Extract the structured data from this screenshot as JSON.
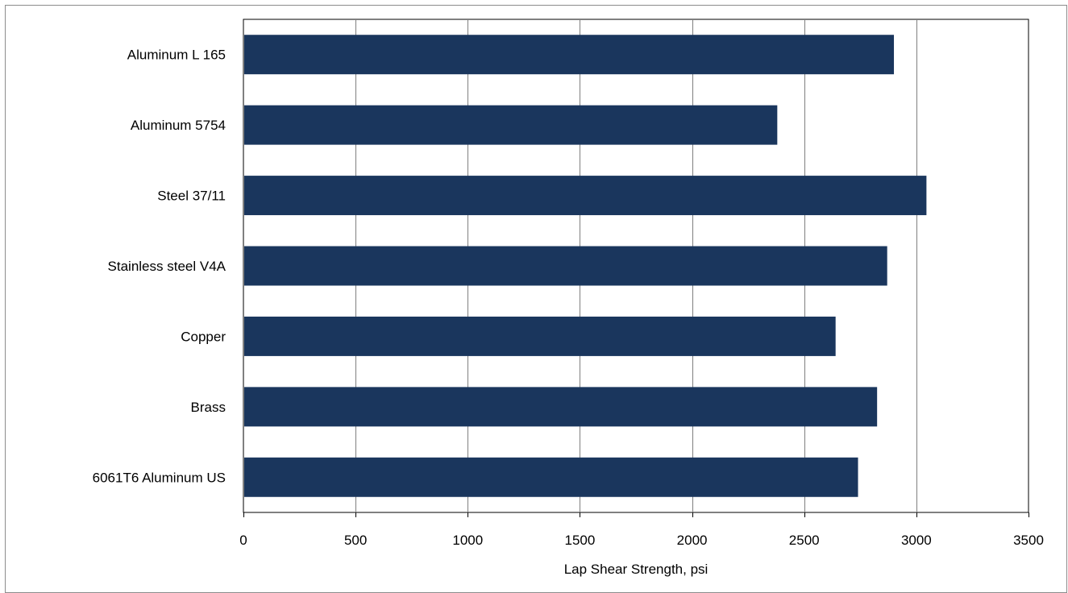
{
  "chart_data": {
    "type": "bar",
    "orientation": "horizontal",
    "categories": [
      "Aluminum L 165",
      "Aluminum 5754",
      "Steel 37/11",
      "Stainless steel V4A",
      "Copper",
      "Brass",
      "6061T6 Aluminum US"
    ],
    "values": [
      2900,
      2380,
      3045,
      2870,
      2640,
      2825,
      2740
    ],
    "xticks": [
      0,
      500,
      1000,
      1500,
      2000,
      2500,
      3000,
      3500
    ],
    "xlim": [
      0,
      3500
    ],
    "xlabel": "Lap Shear Strength, psi",
    "title": "",
    "grid": "vertical",
    "legend": "none",
    "bar_color": "#1a365d"
  }
}
